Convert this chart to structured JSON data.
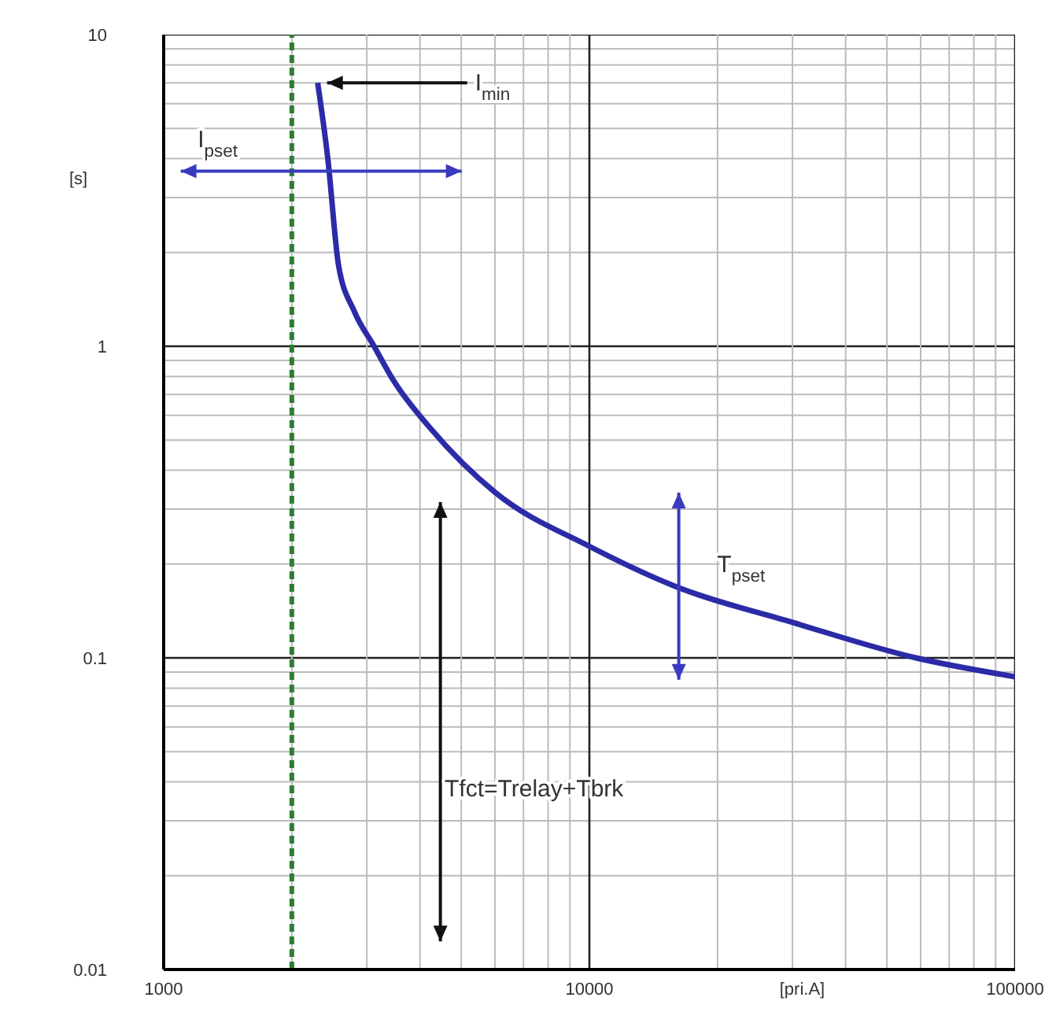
{
  "chart_data": {
    "type": "line",
    "xlabel": "[pri.A]",
    "ylabel": "[s]",
    "series": [
      {
        "color": "#2b2ba8",
        "x": [
          2300,
          2430,
          2575,
          2800,
          3120,
          3480,
          4260,
          6000,
          10000,
          15850,
          30000,
          58500,
          100000
        ],
        "values": [
          7,
          4,
          1.82,
          1.3,
          1,
          0.77,
          0.54,
          0.34,
          0.228,
          0.17,
          0.13,
          0.1,
          0.087
        ]
      }
    ],
    "log": "xy",
    "xlim": [
      1000,
      100000
    ],
    "ylim": [
      0.01,
      10
    ],
    "xticks": [
      1000,
      10000,
      100000
    ],
    "yticks": [
      0.01,
      0.1,
      1,
      10
    ],
    "grid": true,
    "marker": "none",
    "ref_lines": [
      {
        "axis": "x",
        "value": 2000,
        "color": "#2e7d32",
        "line_style": "dashed"
      }
    ],
    "annotations": [
      {
        "text": "I$_{min}$",
        "x": 2300,
        "y": 7
      },
      "I$_{pset}$",
      "T$_{pset}$",
      "Tfct=Trelay+Tbrk"
    ]
  }
}
